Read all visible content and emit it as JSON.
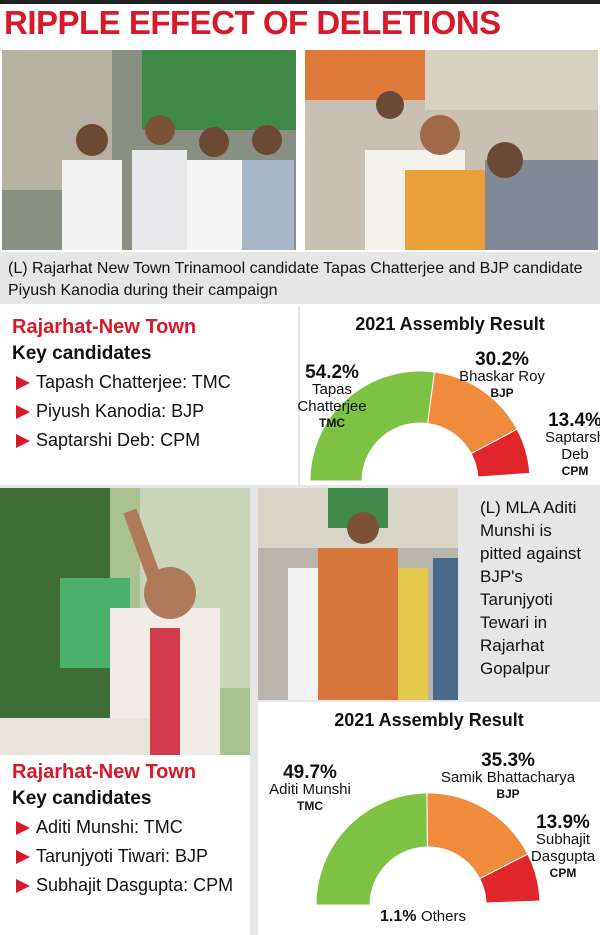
{
  "title": "RIPPLE EFFECT OF DELETIONS",
  "caption_top": "(L) Rajarhat New Town Trinamool candidate Tapas Chatterjee and BJP candidate Piyush Kanodia during their campaign",
  "caption_side": "(L) MLA Aditi Munshi is pitted against BJP's Tarunjyoti Tewari in Rajarhat Gopalpur",
  "constituencies": [
    {
      "name": "Rajarhat-New Town",
      "subtitle": "Key candidates",
      "candidates": [
        "Tapash Chatterjee: TMC",
        "Piyush Kanodia: BJP",
        "Saptarshi Deb: CPM"
      ]
    },
    {
      "name": "Rajarhat-New Town",
      "subtitle": "Key candidates",
      "candidates": [
        "Aditi Munshi: TMC",
        "Tarunjyoti Tiwari: BJP",
        "Subhajit Dasgupta: CPM"
      ]
    }
  ],
  "chart_data": [
    {
      "type": "pie",
      "title": "2021 Assembly Result",
      "categories": [
        "Tapas Chatterjee",
        "Bhaskar Roy",
        "Saptarshi Deb"
      ],
      "parties": [
        "TMC",
        "BJP",
        "CPM"
      ],
      "values": [
        54.2,
        30.2,
        13.4
      ],
      "value_labels": [
        "54.2%",
        "30.2%",
        "13.4%"
      ],
      "colors": [
        "#7dc242",
        "#f08a3c",
        "#e0262a"
      ]
    },
    {
      "type": "pie",
      "title": "2021 Assembly Result",
      "categories": [
        "Aditi Munshi",
        "Samik Bhattacharya",
        "Subhajit Dasgupta",
        "Others"
      ],
      "parties": [
        "TMC",
        "BJP",
        "CPM",
        null
      ],
      "values": [
        49.7,
        35.3,
        13.9,
        1.1
      ],
      "value_labels": [
        "49.7%",
        "35.3%",
        "13.9%",
        "1.1%"
      ],
      "colors": [
        "#7dc242",
        "#f08a3c",
        "#e0262a",
        "#f4f4f4"
      ]
    }
  ]
}
